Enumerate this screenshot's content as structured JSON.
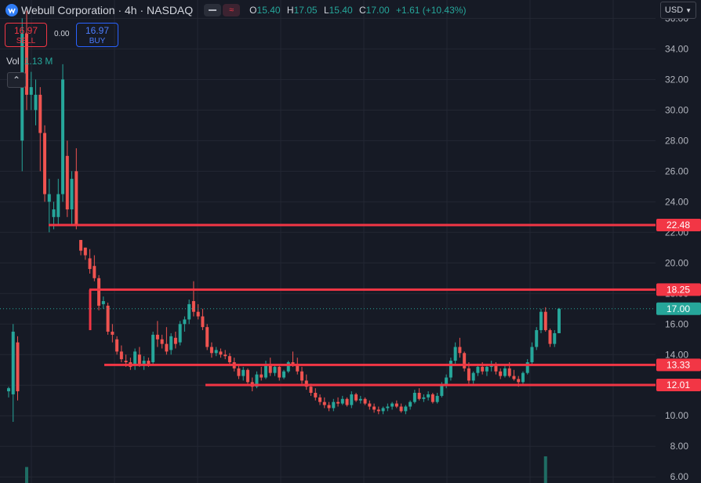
{
  "header": {
    "title": "Webull Corporation · 4h · NASDAQ",
    "ohlc": {
      "o_label": "O",
      "o": "15.40",
      "h_label": "H",
      "h": "17.05",
      "l_label": "L",
      "l": "15.40",
      "c_label": "C",
      "c": "17.00",
      "change": "+1.61 (+10.43%)"
    },
    "compare_icon": "approx-icon"
  },
  "trade": {
    "sell_price": "16.97",
    "sell_label": "SELL",
    "spread": "0.00",
    "buy_price": "16.97",
    "buy_label": "BUY"
  },
  "volume": {
    "label": "Vol",
    "value": "1.13 M"
  },
  "currency": {
    "label": "USD"
  },
  "colors": {
    "up": "#26a69a",
    "down": "#ef5350",
    "line": "#f23645",
    "bg": "#161a25",
    "grid": "#232733"
  },
  "chart_data": {
    "type": "candlestick",
    "y_ticks": [
      "6.00",
      "8.00",
      "10.00",
      "12.00",
      "14.00",
      "16.00",
      "18.00",
      "20.00",
      "22.00",
      "24.00",
      "26.00",
      "28.00",
      "30.00",
      "32.00",
      "34.00",
      "36.00"
    ],
    "ylim": [
      5.6,
      37.2
    ],
    "current_price": "17.00",
    "horizontal_levels": [
      {
        "label": "22.48",
        "value": 22.48
      },
      {
        "label": "18.25",
        "value": 18.25
      },
      {
        "label": "13.33",
        "value": 13.33
      },
      {
        "label": "12.01",
        "value": 12.01
      }
    ],
    "candles": [
      [
        11.6,
        11.9,
        11.2,
        11.8
      ],
      [
        11.4,
        16.0,
        9.6,
        15.5
      ],
      [
        14.8,
        15.2,
        11.0,
        11.6
      ],
      [
        28.0,
        36.0,
        26.0,
        35.0
      ],
      [
        35.0,
        36.5,
        30.0,
        31.0
      ],
      [
        31.0,
        32.5,
        30.0,
        31.5
      ],
      [
        30.0,
        32.0,
        29.0,
        31.0
      ],
      [
        31.0,
        31.5,
        26.0,
        28.5
      ],
      [
        28.5,
        29.0,
        24.0,
        24.5
      ],
      [
        24.0,
        25.5,
        22.0,
        24.5
      ],
      [
        23.0,
        24.0,
        22.2,
        23.5
      ],
      [
        23.0,
        25.5,
        22.5,
        24.5
      ],
      [
        24.5,
        33.0,
        24.0,
        32.0
      ],
      [
        27.0,
        28.0,
        23.0,
        23.5
      ],
      [
        23.5,
        26.0,
        22.5,
        25.5
      ],
      [
        26.0,
        27.5,
        22.2,
        22.5
      ],
      [
        21.5,
        21.5,
        20.5,
        20.8
      ],
      [
        21.0,
        21.0,
        20.2,
        20.5
      ],
      [
        20.3,
        20.9,
        19.3,
        19.6
      ],
      [
        19.8,
        20.5,
        18.8,
        19.0
      ],
      [
        19.0,
        19.2,
        16.9,
        17.2
      ],
      [
        17.3,
        17.8,
        17.0,
        17.5
      ],
      [
        17.2,
        17.4,
        15.3,
        15.5
      ],
      [
        15.5,
        16.0,
        14.8,
        15.3
      ],
      [
        15.0,
        15.2,
        14.0,
        14.2
      ],
      [
        14.2,
        14.6,
        13.5,
        13.7
      ],
      [
        13.6,
        14.0,
        13.2,
        13.5
      ],
      [
        13.5,
        13.8,
        13.0,
        13.2
      ],
      [
        13.3,
        14.4,
        13.0,
        14.2
      ],
      [
        14.0,
        14.5,
        13.2,
        13.4
      ],
      [
        13.4,
        13.9,
        13.0,
        13.6
      ],
      [
        13.6,
        13.8,
        13.2,
        13.4
      ],
      [
        13.5,
        15.5,
        13.4,
        15.3
      ],
      [
        15.3,
        16.2,
        14.5,
        15.0
      ],
      [
        15.0,
        15.3,
        14.4,
        14.7
      ],
      [
        14.7,
        15.8,
        14.0,
        14.2
      ],
      [
        14.3,
        15.4,
        14.0,
        15.2
      ],
      [
        15.1,
        15.5,
        14.4,
        14.7
      ],
      [
        14.8,
        16.2,
        14.6,
        16.0
      ],
      [
        16.0,
        16.5,
        15.5,
        16.3
      ],
      [
        16.3,
        17.6,
        16.0,
        17.3
      ],
      [
        17.5,
        18.8,
        16.5,
        16.8
      ],
      [
        16.8,
        17.3,
        16.3,
        16.5
      ],
      [
        16.5,
        17.0,
        15.6,
        15.8
      ],
      [
        15.8,
        16.0,
        14.3,
        14.5
      ],
      [
        14.5,
        14.8,
        13.8,
        14.1
      ],
      [
        14.1,
        14.5,
        13.9,
        14.3
      ],
      [
        14.2,
        14.4,
        13.8,
        14.0
      ],
      [
        14.0,
        14.3,
        13.7,
        13.9
      ],
      [
        13.9,
        14.1,
        13.3,
        13.5
      ],
      [
        13.5,
        13.8,
        12.9,
        13.1
      ],
      [
        13.1,
        13.3,
        12.4,
        12.6
      ],
      [
        12.6,
        13.2,
        12.3,
        13.0
      ],
      [
        13.0,
        13.1,
        12.1,
        12.2
      ],
      [
        12.2,
        12.5,
        11.6,
        11.9
      ],
      [
        11.9,
        12.9,
        11.8,
        12.7
      ],
      [
        12.7,
        13.2,
        12.3,
        12.5
      ],
      [
        12.5,
        13.6,
        12.4,
        13.4
      ],
      [
        13.4,
        13.8,
        12.6,
        12.8
      ],
      [
        12.8,
        13.4,
        12.6,
        13.2
      ],
      [
        13.2,
        13.3,
        12.3,
        12.5
      ],
      [
        12.5,
        13.0,
        12.4,
        12.9
      ],
      [
        12.9,
        13.6,
        12.8,
        13.5
      ],
      [
        13.5,
        14.2,
        13.2,
        13.4
      ],
      [
        13.4,
        13.8,
        12.7,
        12.9
      ],
      [
        12.9,
        13.2,
        12.1,
        12.3
      ],
      [
        12.3,
        12.7,
        11.7,
        11.9
      ],
      [
        11.9,
        12.1,
        11.3,
        11.5
      ],
      [
        11.5,
        11.8,
        11.0,
        11.2
      ],
      [
        11.2,
        11.4,
        10.7,
        10.9
      ],
      [
        10.9,
        11.2,
        10.5,
        10.7
      ],
      [
        10.7,
        10.9,
        10.3,
        10.5
      ],
      [
        10.5,
        11.1,
        10.3,
        10.9
      ],
      [
        10.9,
        11.2,
        10.6,
        10.8
      ],
      [
        10.8,
        11.3,
        10.7,
        11.1
      ],
      [
        11.1,
        11.2,
        10.6,
        10.7
      ],
      [
        10.7,
        11.6,
        10.5,
        11.4
      ],
      [
        11.4,
        11.5,
        10.9,
        11.0
      ],
      [
        11.0,
        11.3,
        10.8,
        11.1
      ],
      [
        11.1,
        11.2,
        10.7,
        10.8
      ],
      [
        10.8,
        11.0,
        10.4,
        10.6
      ],
      [
        10.6,
        10.8,
        10.2,
        10.4
      ],
      [
        10.4,
        10.6,
        10.1,
        10.3
      ],
      [
        10.3,
        10.6,
        10.1,
        10.5
      ],
      [
        10.5,
        10.8,
        10.3,
        10.6
      ],
      [
        10.6,
        10.9,
        10.4,
        10.8
      ],
      [
        10.8,
        11.0,
        10.5,
        10.6
      ],
      [
        10.6,
        10.8,
        10.2,
        10.3
      ],
      [
        10.3,
        10.7,
        10.1,
        10.6
      ],
      [
        10.6,
        11.0,
        10.4,
        10.9
      ],
      [
        10.9,
        11.7,
        10.8,
        11.5
      ],
      [
        11.5,
        11.8,
        11.0,
        11.1
      ],
      [
        11.1,
        11.4,
        10.9,
        11.2
      ],
      [
        11.2,
        11.6,
        11.0,
        11.4
      ],
      [
        11.4,
        11.5,
        10.8,
        10.9
      ],
      [
        10.9,
        11.5,
        10.8,
        11.3
      ],
      [
        11.3,
        12.2,
        11.2,
        12.0
      ],
      [
        12.0,
        12.7,
        11.8,
        12.5
      ],
      [
        12.5,
        13.8,
        12.3,
        13.6
      ],
      [
        13.6,
        14.8,
        13.4,
        14.5
      ],
      [
        14.5,
        15.1,
        13.8,
        14.1
      ],
      [
        14.1,
        14.2,
        12.9,
        13.1
      ],
      [
        13.1,
        13.5,
        12.1,
        12.3
      ],
      [
        12.3,
        12.9,
        12.1,
        12.8
      ],
      [
        12.8,
        13.4,
        12.6,
        13.2
      ],
      [
        13.2,
        13.5,
        12.7,
        12.9
      ],
      [
        12.9,
        13.4,
        12.6,
        13.2
      ],
      [
        13.2,
        13.6,
        12.9,
        13.4
      ],
      [
        13.4,
        13.5,
        12.7,
        12.9
      ],
      [
        12.9,
        13.1,
        12.4,
        12.6
      ],
      [
        12.6,
        13.3,
        12.5,
        13.1
      ],
      [
        13.1,
        13.5,
        12.5,
        12.6
      ],
      [
        12.6,
        13.0,
        12.3,
        12.4
      ],
      [
        12.4,
        12.6,
        11.9,
        12.2
      ],
      [
        12.2,
        12.9,
        12.1,
        12.8
      ],
      [
        12.8,
        13.7,
        12.7,
        13.5
      ],
      [
        13.5,
        14.8,
        13.3,
        14.5
      ],
      [
        14.5,
        15.8,
        14.3,
        15.6
      ],
      [
        15.6,
        17.0,
        15.4,
        16.8
      ],
      [
        16.8,
        17.1,
        15.5,
        15.6
      ],
      [
        15.6,
        15.7,
        14.5,
        14.7
      ],
      [
        14.7,
        15.6,
        14.5,
        15.4
      ],
      [
        15.4,
        17.05,
        15.4,
        17.0
      ]
    ],
    "volume_spikes": [
      {
        "candle_index": 4,
        "relative": 0.6
      },
      {
        "candle_index": 119,
        "relative": 1.0
      }
    ]
  }
}
